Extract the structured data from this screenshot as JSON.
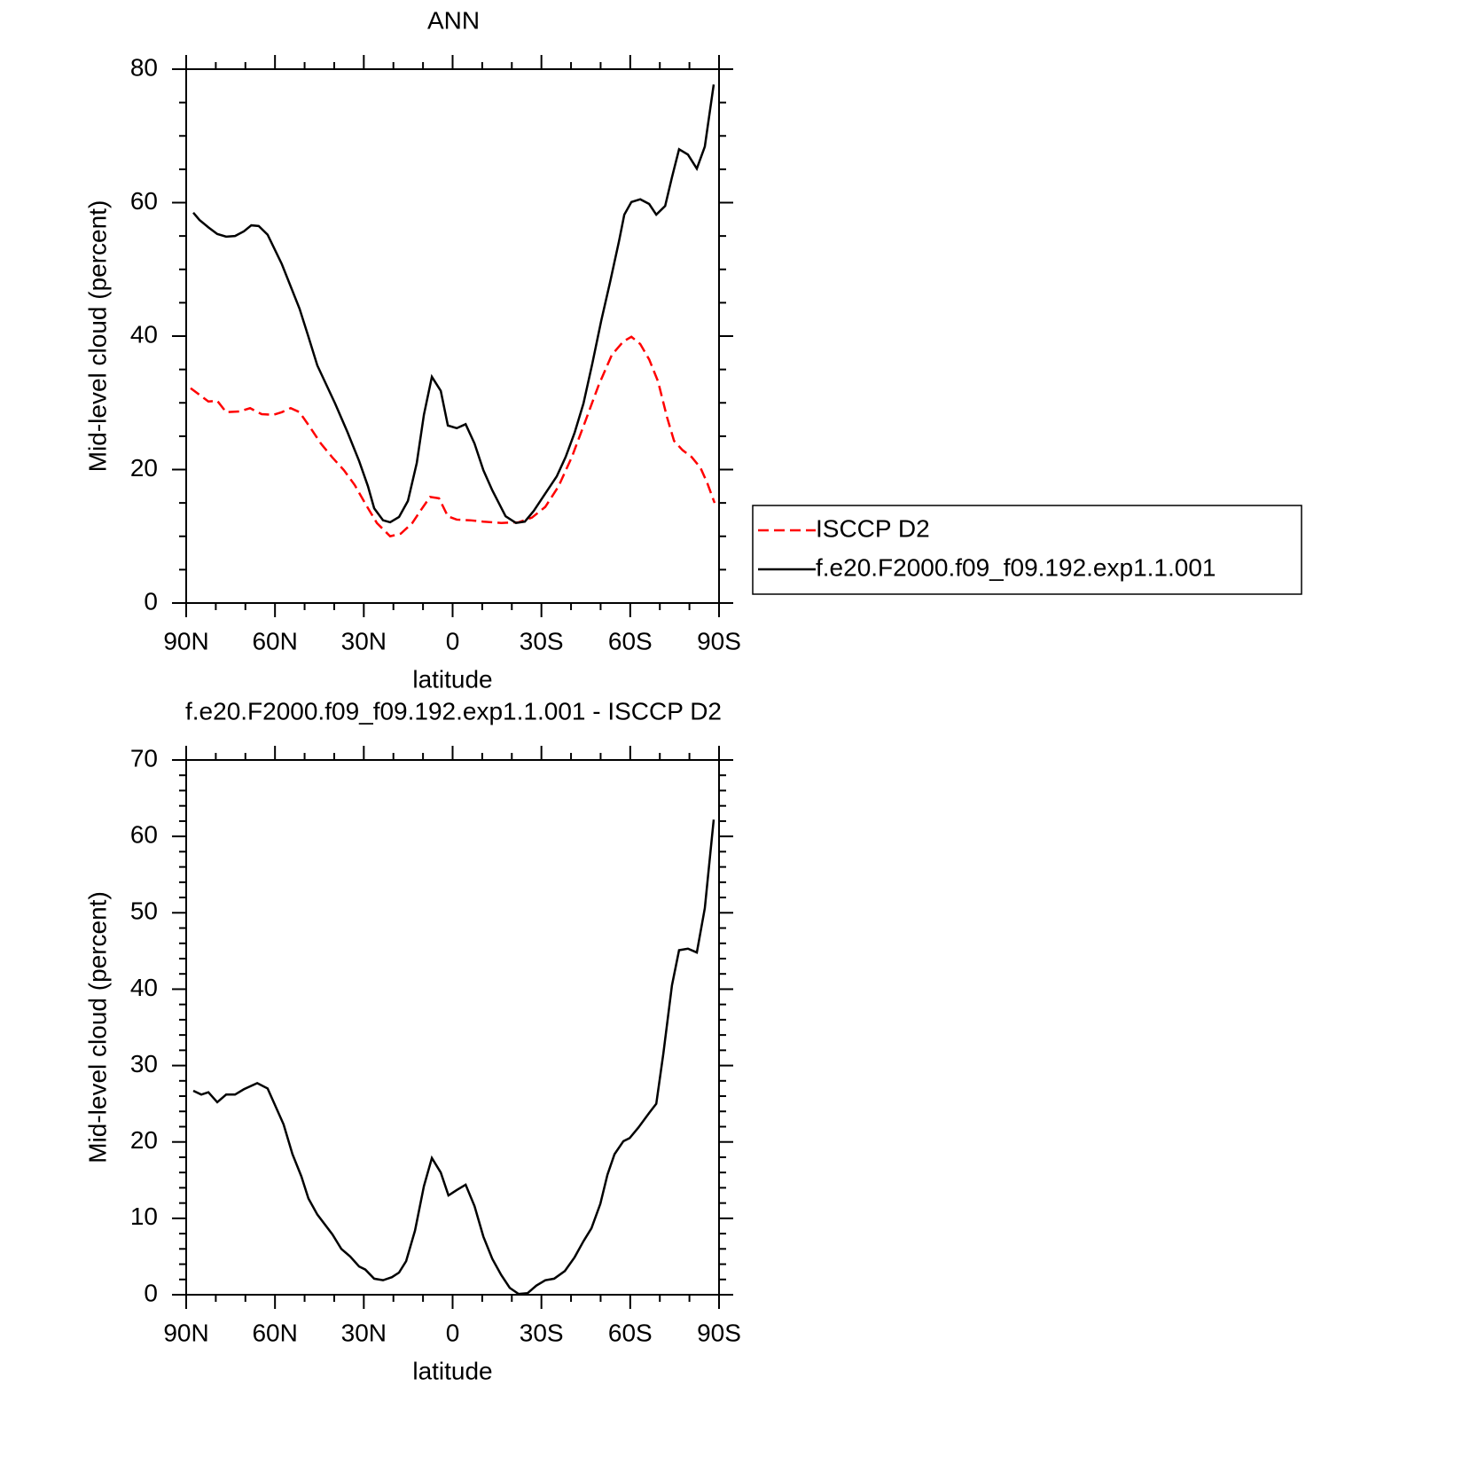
{
  "chart_data": [
    {
      "type": "line",
      "title": "ANN",
      "xlabel": "latitude",
      "ylabel": "Mid-level cloud (percent)",
      "xlim": [
        90,
        -90
      ],
      "xticks": [
        {
          "value": 90,
          "label": "90N"
        },
        {
          "value": 60,
          "label": "60N"
        },
        {
          "value": 30,
          "label": "30N"
        },
        0,
        {
          "value": -30,
          "label": "30S"
        },
        {
          "value": -60,
          "label": "60S"
        },
        {
          "value": -90,
          "label": "90S"
        }
      ],
      "ylim": [
        0,
        80
      ],
      "yticks": [
        0,
        20,
        40,
        60,
        80
      ],
      "legend": "right",
      "series": [
        {
          "name": "ISCCP D2",
          "color": "#ff0000",
          "dashed": true,
          "x": [
            88.5,
            85.5,
            82.5,
            79.5,
            76.5,
            72.0,
            68.4,
            64.5,
            60.6,
            57.7,
            54.7,
            51.7,
            48.1,
            44.5,
            40.6,
            36.7,
            33.1,
            29.5,
            25.6,
            21.1,
            17.5,
            13.6,
            10.6,
            7.6,
            4.6,
            1.6,
            -1.4,
            -5.9,
            -10.4,
            -16.4,
            -22.3,
            -26.8,
            -31.3,
            -35.8,
            -40.3,
            -44.8,
            -49.3,
            -53.8,
            -57.7,
            -60.4,
            -63.4,
            -66.4,
            -69.4,
            -72.4,
            -74.8,
            -77.7,
            -80.7,
            -83.7,
            -86.1,
            -88.5
          ],
          "values": [
            32.2,
            31.2,
            30.2,
            30.3,
            28.6,
            28.7,
            29.2,
            28.3,
            28.2,
            28.6,
            29.2,
            28.6,
            26.3,
            23.9,
            21.8,
            19.9,
            17.7,
            14.9,
            12.0,
            10.0,
            10.4,
            12.0,
            14.0,
            15.9,
            15.7,
            13.0,
            12.5,
            12.4,
            12.2,
            12.0,
            12.1,
            12.8,
            14.4,
            17.5,
            21.9,
            27.2,
            32.6,
            37.2,
            39.2,
            39.9,
            38.8,
            36.5,
            33.2,
            27.9,
            24.3,
            22.9,
            21.9,
            20.3,
            17.9,
            15.0
          ]
        },
        {
          "name": "f.e20.F2000.f09_f09.192.exp1.1.001",
          "color": "#000000",
          "dashed": false,
          "x": [
            87.6,
            85.5,
            82.5,
            79.5,
            76.5,
            73.5,
            70.5,
            68.0,
            65.5,
            62.5,
            57.7,
            51.7,
            48.7,
            45.7,
            39.7,
            35.5,
            31.6,
            28.6,
            26.5,
            23.5,
            21.1,
            18.1,
            15.1,
            12.1,
            9.7,
            7.0,
            4.0,
            1.6,
            -1.4,
            -4.4,
            -7.4,
            -10.4,
            -13.4,
            -17.9,
            -21.4,
            -24.4,
            -27.4,
            -31.0,
            -35.2,
            -38.2,
            -41.2,
            -44.2,
            -47.2,
            -50.2,
            -53.2,
            -56.2,
            -58.0,
            -60.4,
            -63.4,
            -66.4,
            -68.8,
            -71.8,
            -74.1,
            -76.5,
            -79.5,
            -82.5,
            -85.2,
            -88.2
          ],
          "values": [
            58.5,
            57.4,
            56.3,
            55.3,
            54.9,
            55.0,
            55.7,
            56.6,
            56.5,
            55.2,
            50.8,
            44.1,
            39.9,
            35.6,
            29.9,
            25.6,
            21.3,
            17.5,
            14.2,
            12.4,
            12.1,
            12.9,
            15.3,
            21.0,
            28.2,
            33.9,
            31.8,
            26.6,
            26.2,
            26.8,
            23.9,
            19.9,
            16.9,
            13.0,
            12.0,
            12.2,
            13.8,
            16.2,
            19.0,
            21.9,
            25.5,
            29.9,
            35.9,
            42.3,
            48.1,
            54.2,
            58.2,
            60.1,
            60.5,
            59.8,
            58.2,
            59.5,
            63.8,
            68.0,
            67.2,
            65.1,
            68.4,
            77.7
          ]
        }
      ]
    },
    {
      "type": "line",
      "title": "f.e20.F2000.f09_f09.192.exp1.1.001 - ISCCP D2",
      "xlabel": "latitude",
      "ylabel": "Mid-level cloud (percent)",
      "xlim": [
        90,
        -90
      ],
      "xticks": [
        {
          "value": 90,
          "label": "90N"
        },
        {
          "value": 60,
          "label": "60N"
        },
        {
          "value": 30,
          "label": "30N"
        },
        0,
        {
          "value": -30,
          "label": "30S"
        },
        {
          "value": -60,
          "label": "60S"
        },
        {
          "value": -90,
          "label": "90S"
        }
      ],
      "ylim": [
        0,
        70
      ],
      "yticks": [
        0,
        10,
        20,
        30,
        40,
        50,
        60,
        70
      ],
      "series": [
        {
          "color": "#000000",
          "dashed": false,
          "x": [
            87.6,
            84.9,
            82.5,
            79.5,
            76.5,
            73.5,
            70.5,
            66.0,
            62.5,
            57.1,
            54.1,
            51.1,
            48.7,
            45.7,
            40.6,
            37.6,
            34.6,
            31.6,
            29.5,
            26.5,
            23.5,
            20.5,
            18.1,
            15.7,
            12.7,
            9.7,
            7.0,
            4.0,
            1.4,
            -1.4,
            -4.4,
            -7.4,
            -10.4,
            -13.4,
            -16.4,
            -19.3,
            -22.3,
            -25.3,
            -28.3,
            -31.3,
            -34.3,
            -37.9,
            -41.2,
            -44.2,
            -46.9,
            -49.9,
            -52.3,
            -54.7,
            -57.7,
            -59.8,
            -62.8,
            -66.4,
            -68.8,
            -71.2,
            -74.1,
            -76.5,
            -79.5,
            -82.5,
            -85.2,
            -88.2
          ],
          "values": [
            26.7,
            26.2,
            26.5,
            25.2,
            26.2,
            26.2,
            26.9,
            27.7,
            27.0,
            22.3,
            18.4,
            15.5,
            12.6,
            10.5,
            7.9,
            6.0,
            5.0,
            3.7,
            3.3,
            2.1,
            1.9,
            2.3,
            2.9,
            4.4,
            8.4,
            14.2,
            17.9,
            16.0,
            13.0,
            13.7,
            14.4,
            11.6,
            7.6,
            4.7,
            2.6,
            0.9,
            0.1,
            0.2,
            1.2,
            1.9,
            2.1,
            3.1,
            4.9,
            7.0,
            8.7,
            11.9,
            15.7,
            18.4,
            20.1,
            20.5,
            21.9,
            23.8,
            25.0,
            31.6,
            40.5,
            45.1,
            45.3,
            44.8,
            50.6,
            62.2
          ]
        }
      ]
    }
  ]
}
